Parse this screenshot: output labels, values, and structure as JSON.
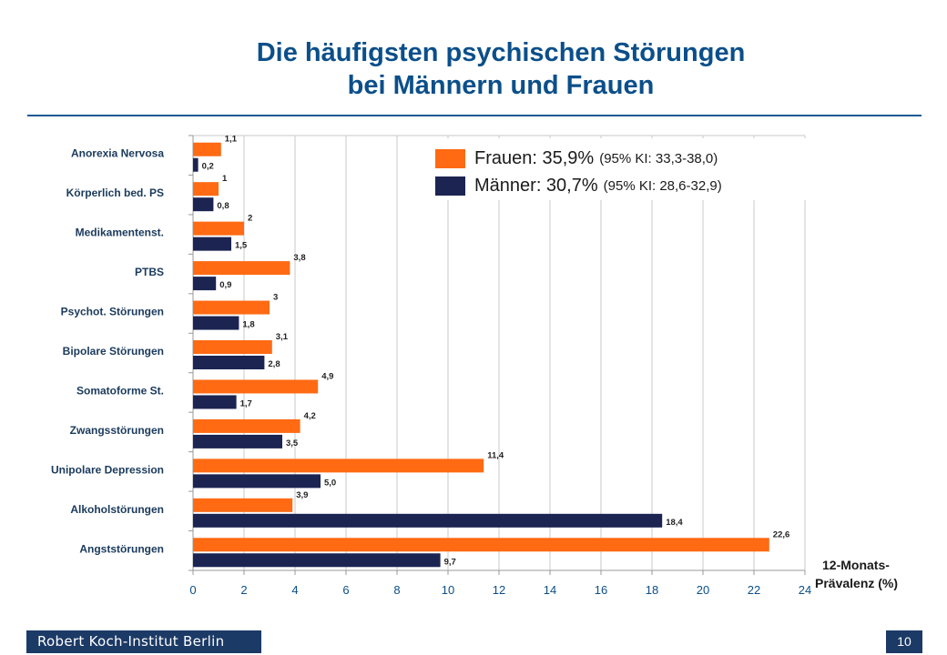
{
  "title_lines": [
    "Die häufigsten psychischen Störungen",
    "bei Männern und Frauen"
  ],
  "footer": {
    "text": "Robert Koch-Institut Berlin",
    "page": "10"
  },
  "legend": [
    {
      "key": "frauen",
      "text": "Frauen: 35,9%",
      "ci": "(95% KI: 33,3-38,0)",
      "color": "#ff6a13"
    },
    {
      "key": "maenner",
      "text": "Männer: 30,7%",
      "ci": "(95% KI: 28,6-32,9)",
      "color": "#1c2452"
    }
  ],
  "axis_title_lines": [
    "12-Monats-",
    "Prävalenz  (%)"
  ],
  "chart_data": {
    "type": "bar",
    "orientation": "horizontal",
    "categories": [
      "Anorexia Nervosa",
      "Körperlich bed. PS",
      "Medikamentenst.",
      "PTBS",
      "Psychot. Störungen",
      "Bipolare Störungen",
      "Somatoforme St.",
      "Zwangsstörungen",
      "Unipolare Depression",
      "Alkoholstörungen",
      "Angststörungen"
    ],
    "series": [
      {
        "name": "Frauen",
        "color": "#ff6a13",
        "values": [
          1.1,
          1,
          2,
          3.8,
          3,
          3.1,
          4.9,
          4.2,
          11.4,
          3.9,
          22.6
        ],
        "labels": [
          "1,1",
          "1",
          "2",
          "3,8",
          "3",
          "3,1",
          "4,9",
          "4,2",
          "11,4",
          "3,9",
          "22,6"
        ]
      },
      {
        "name": "Männer",
        "color": "#1c2452",
        "values": [
          0.2,
          0.8,
          1.5,
          0.9,
          1.8,
          2.8,
          1.7,
          3.5,
          5.0,
          18.4,
          9.7
        ],
        "labels": [
          "0,2",
          "0,8",
          "1,5",
          "0,9",
          "1,8",
          "2,8",
          "1,7",
          "3,5",
          "5,0",
          "18,4",
          "9,7"
        ]
      }
    ],
    "x_ticks": [
      "0",
      "2",
      "4",
      "6",
      "8",
      "10",
      "12",
      "14",
      "16",
      "18",
      "20",
      "22",
      "24"
    ],
    "xlim": [
      0,
      24
    ],
    "grid": true,
    "legend_position": "top-right"
  }
}
